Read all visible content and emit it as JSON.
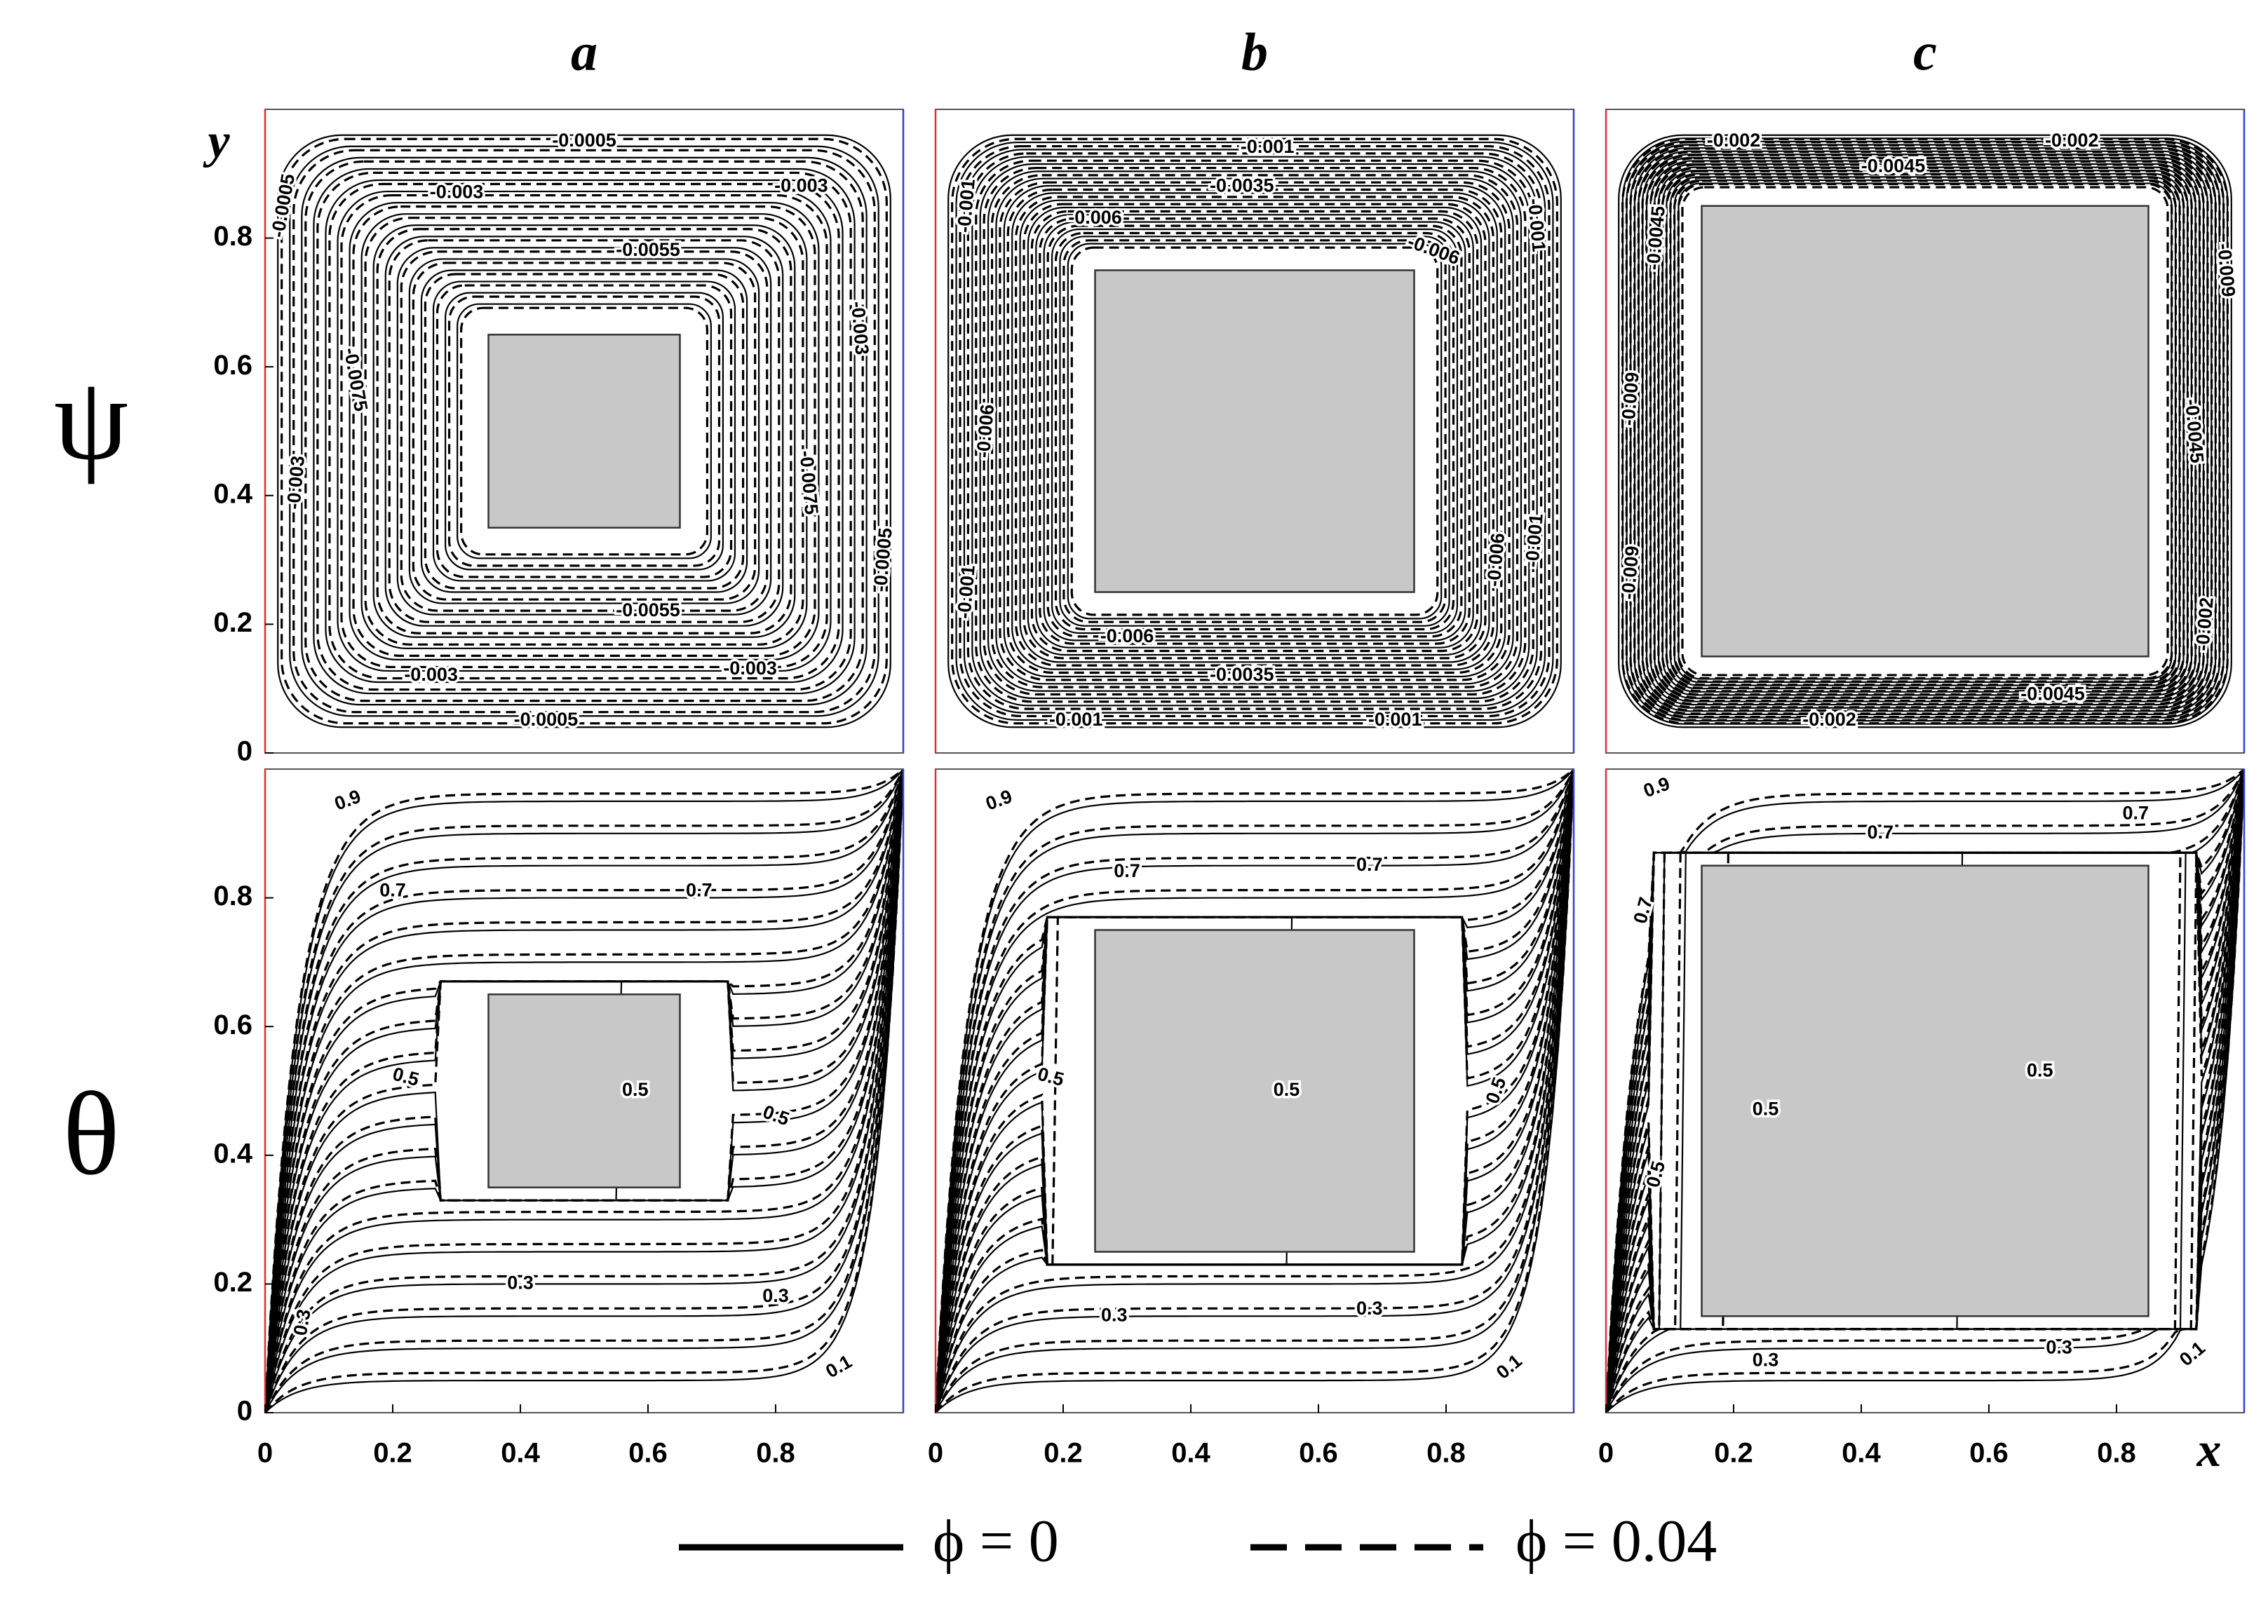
{
  "column_titles": [
    "a",
    "b",
    "c"
  ],
  "row_labels": [
    "ψ",
    "θ"
  ],
  "legend": {
    "series": [
      {
        "name": "ϕ = 0",
        "style": "solid",
        "color": "#000000"
      },
      {
        "name": "ϕ = 0.04",
        "style": "dashed",
        "color": "#000000"
      }
    ]
  },
  "chart_data": [
    {
      "type": "contour",
      "field": "psi",
      "y_label": "y",
      "xlim": [
        0,
        1
      ],
      "ylim": [
        0,
        1
      ],
      "yticks": [
        0,
        0.2,
        0.4,
        0.6,
        0.8
      ],
      "obstacle": {
        "x": [
          0.35,
          0.65
        ],
        "y": [
          0.35,
          0.65
        ]
      },
      "obstacle_color": "#c8c8c8",
      "contour_labels": [
        "-0.0005",
        "-0.003",
        "-0.003",
        "-0.0055",
        "-0.0075",
        "-0.0005",
        "-0.003",
        "-0.003",
        "-0.0075",
        "-0.0005",
        "-0.0055",
        "-0.003",
        "-0.003",
        "-0.0005"
      ]
    },
    {
      "type": "contour",
      "field": "psi",
      "xlim": [
        0,
        1
      ],
      "ylim": [
        0,
        1
      ],
      "obstacle": {
        "x": [
          0.25,
          0.75
        ],
        "y": [
          0.25,
          0.75
        ]
      },
      "obstacle_color": "#c8c8c8",
      "contour_labels": [
        "-0.001",
        "-0.0035",
        "-0.006",
        "-0.006",
        "-0.001",
        "-0.001",
        "-0.006",
        "-0.001",
        "-0.006",
        "-0.0035",
        "-0.001",
        "-0.001",
        "-0.006",
        "-0.001"
      ]
    },
    {
      "type": "contour",
      "field": "psi",
      "xlim": [
        0,
        1
      ],
      "ylim": [
        0,
        1
      ],
      "obstacle": {
        "x": [
          0.15,
          0.85
        ],
        "y": [
          0.15,
          0.85
        ]
      },
      "obstacle_color": "#c8c8c8",
      "contour_labels": [
        "-0.002",
        "-0.002",
        "-0.0045",
        "-0.0045",
        "-0.009",
        "-0.009",
        "-0.0045",
        "-0.009",
        "-0.002",
        "-0.002",
        "-0.0045"
      ]
    },
    {
      "type": "contour",
      "field": "theta",
      "xlim": [
        0,
        1
      ],
      "ylim": [
        0,
        1
      ],
      "xticks": [
        0,
        0.2,
        0.4,
        0.6,
        0.8
      ],
      "yticks": [
        0,
        0.2,
        0.4,
        0.6,
        0.8
      ],
      "obstacle": {
        "x": [
          0.35,
          0.65
        ],
        "y": [
          0.35,
          0.65
        ]
      },
      "obstacle_color": "#c8c8c8",
      "contour_labels": [
        "0.9",
        "0.7",
        "0.7",
        "0.5",
        "0.5",
        "0.5",
        "0.3",
        "0.3",
        "0.1",
        "0.3"
      ]
    },
    {
      "type": "contour",
      "field": "theta",
      "xlim": [
        0,
        1
      ],
      "ylim": [
        0,
        1
      ],
      "xticks": [
        0,
        0.2,
        0.4,
        0.6,
        0.8
      ],
      "obstacle": {
        "x": [
          0.25,
          0.75
        ],
        "y": [
          0.25,
          0.75
        ]
      },
      "obstacle_color": "#c8c8c8",
      "contour_labels": [
        "0.9",
        "0.7",
        "0.7",
        "0.5",
        "0.5",
        "0.5",
        "0.3",
        "0.3",
        "0.1"
      ]
    },
    {
      "type": "contour",
      "field": "theta",
      "x_label": "x",
      "xlim": [
        0,
        1
      ],
      "ylim": [
        0,
        1
      ],
      "xticks": [
        0,
        0.2,
        0.4,
        0.6,
        0.8
      ],
      "obstacle": {
        "x": [
          0.15,
          0.85
        ],
        "y": [
          0.15,
          0.85
        ]
      },
      "obstacle_color": "#c8c8c8",
      "contour_labels": [
        "0.9",
        "0.7",
        "0.7",
        "0.7",
        "0.5",
        "0.5",
        "0.5",
        "0.3",
        "0.3",
        "0.1"
      ]
    }
  ]
}
